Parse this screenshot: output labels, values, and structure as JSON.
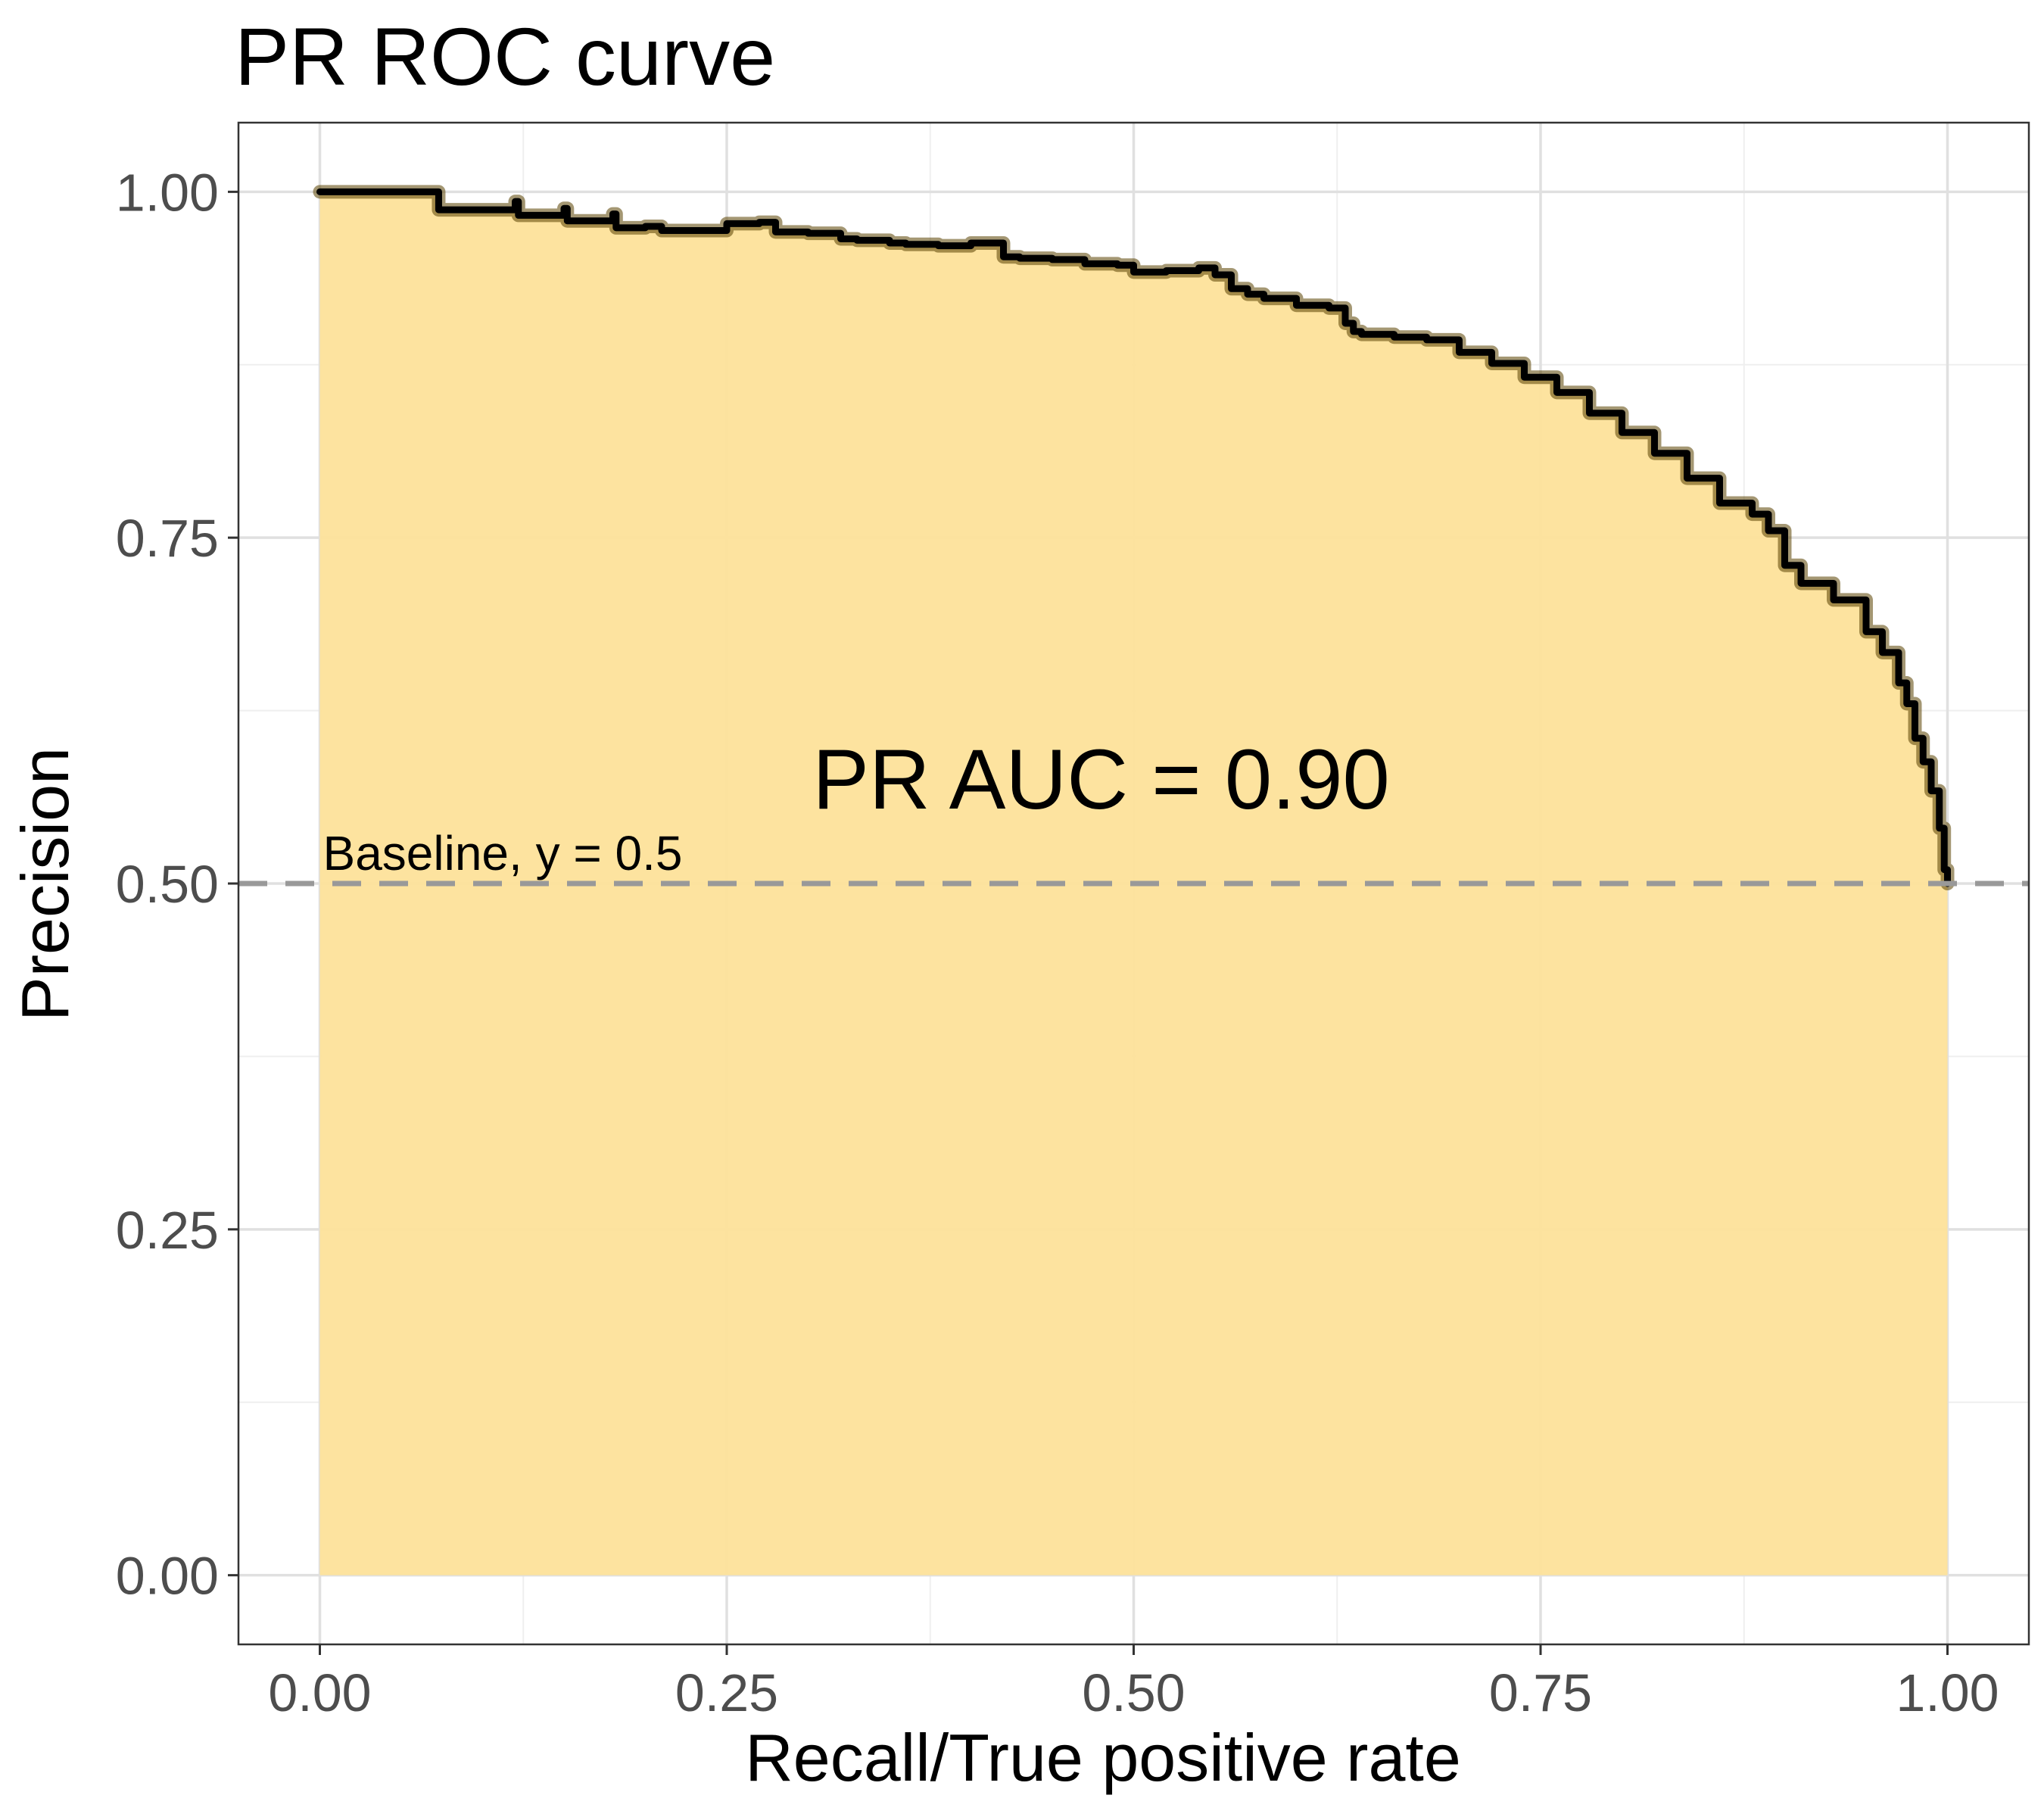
{
  "chart_data": {
    "type": "area",
    "title": "PR ROC curve",
    "xlabel": "Recall/True positive rate",
    "ylabel": "Precision",
    "xlim": [
      -0.05,
      1.05
    ],
    "ylim": [
      -0.05,
      1.05
    ],
    "x_ticks": [
      "0.00",
      "0.25",
      "0.50",
      "0.75",
      "1.00"
    ],
    "y_ticks": [
      "0.00",
      "0.25",
      "0.50",
      "0.75",
      "1.00"
    ],
    "grid": true,
    "colors": {
      "fill": "#fde29a",
      "curve": "#000000",
      "baseline": "#999999",
      "grid_major": "#e0e0e0",
      "grid_minor": "#efefef"
    },
    "baseline": {
      "y": 0.5,
      "label": "Baseline, y = 0.5"
    },
    "annotation": "PR AUC = 0.90",
    "series": [
      {
        "x": [
          0.0,
          0.07,
          0.073,
          0.12,
          0.122,
          0.15,
          0.152,
          0.18,
          0.182,
          0.2,
          0.21,
          0.25,
          0.27,
          0.28,
          0.3,
          0.32,
          0.33,
          0.35,
          0.36,
          0.38,
          0.4,
          0.42,
          0.43,
          0.45,
          0.47,
          0.49,
          0.5,
          0.52,
          0.54,
          0.55,
          0.56,
          0.57,
          0.58,
          0.6,
          0.62,
          0.63,
          0.635,
          0.64,
          0.66,
          0.68,
          0.7,
          0.72,
          0.74,
          0.76,
          0.78,
          0.8,
          0.82,
          0.84,
          0.86,
          0.88,
          0.89,
          0.9,
          0.91,
          0.93,
          0.95,
          0.96,
          0.97,
          0.975,
          0.98,
          0.985,
          0.99,
          0.995,
          0.998,
          1.0
        ],
        "y": [
          1.0,
          1.0,
          0.987,
          0.993,
          0.983,
          0.988,
          0.979,
          0.984,
          0.974,
          0.975,
          0.972,
          0.977,
          0.978,
          0.971,
          0.97,
          0.966,
          0.965,
          0.963,
          0.962,
          0.961,
          0.963,
          0.953,
          0.952,
          0.951,
          0.948,
          0.947,
          0.942,
          0.943,
          0.945,
          0.94,
          0.93,
          0.926,
          0.923,
          0.918,
          0.916,
          0.905,
          0.899,
          0.897,
          0.895,
          0.893,
          0.884,
          0.876,
          0.866,
          0.855,
          0.84,
          0.826,
          0.811,
          0.793,
          0.775,
          0.767,
          0.755,
          0.73,
          0.717,
          0.705,
          0.682,
          0.667,
          0.645,
          0.63,
          0.605,
          0.588,
          0.567,
          0.54,
          0.51,
          0.5
        ]
      }
    ]
  }
}
